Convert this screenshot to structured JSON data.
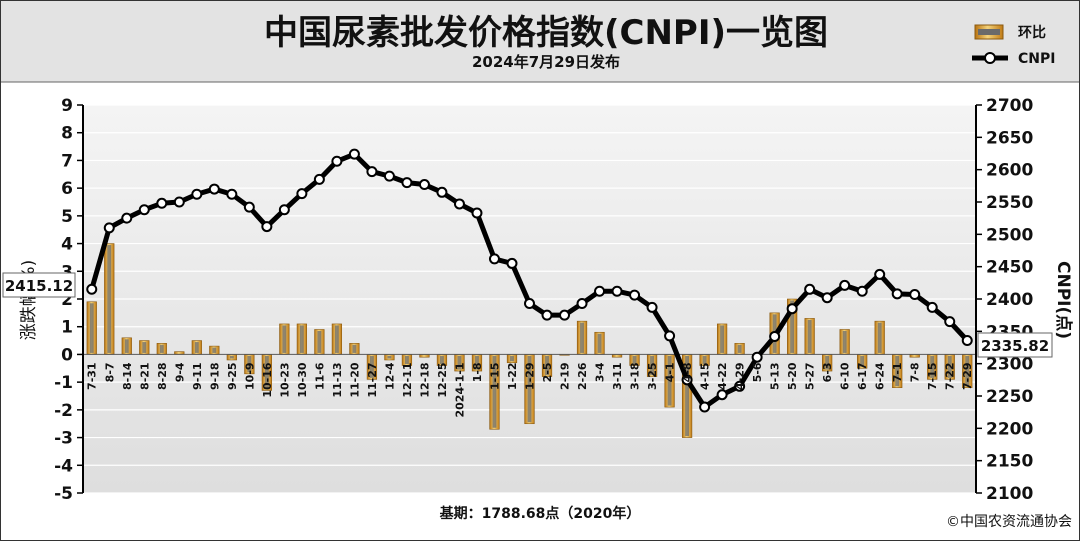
{
  "chart_data": {
    "type": "bar+line",
    "title": "中国尿素批发价格指数(CNPI)一览图",
    "subtitle": "2024年7月29日发布",
    "left_axis": {
      "label": "涨跌幅(%)",
      "ylim": [
        -5,
        9
      ],
      "ticks": [
        -5,
        -4,
        -3,
        -2,
        -1,
        0,
        1,
        2,
        3,
        4,
        5,
        6,
        7,
        8,
        9
      ]
    },
    "right_axis": {
      "label": "CNPI(点)",
      "ylim": [
        2100,
        2700
      ],
      "ticks": [
        2100,
        2150,
        2200,
        2250,
        2300,
        2350,
        2400,
        2450,
        2500,
        2550,
        2600,
        2650,
        2700
      ]
    },
    "legend": {
      "position": "top-right",
      "bar_label": "环比",
      "line_label": "CNPI"
    },
    "categories": [
      "7-31",
      "8-7",
      "8-14",
      "8-21",
      "8-28",
      "9-4",
      "9-11",
      "9-18",
      "9-25",
      "10-9",
      "10-16",
      "10-23",
      "10-30",
      "11-6",
      "11-13",
      "11-20",
      "11-27",
      "12-4",
      "12-11",
      "12-18",
      "12-25",
      "2024-1-1",
      "1-8",
      "1-15",
      "1-22",
      "1-29",
      "2-5",
      "2-19",
      "2-26",
      "3-4",
      "3-11",
      "3-18",
      "3-25",
      "4-1",
      "4-8",
      "4-15",
      "4-22",
      "4-29",
      "5-6",
      "5-13",
      "5-20",
      "5-27",
      "6-3",
      "6-10",
      "6-17",
      "6-24",
      "7-1",
      "7-8",
      "7-15",
      "7-22",
      "7-29"
    ],
    "series": [
      {
        "name": "环比",
        "type": "bar",
        "axis": "left",
        "values": [
          1.9,
          4.0,
          0.6,
          0.5,
          0.4,
          0.1,
          0.5,
          0.3,
          -0.2,
          -0.7,
          -1.3,
          1.1,
          1.1,
          0.9,
          1.1,
          0.4,
          -0.9,
          -0.2,
          -0.4,
          -0.1,
          -0.4,
          -0.6,
          -0.6,
          -2.7,
          -0.3,
          -2.5,
          -0.8,
          0.0,
          1.2,
          0.8,
          -0.1,
          -0.4,
          -0.8,
          -1.9,
          -3.0,
          -0.4,
          1.1,
          0.4,
          0.0,
          1.5,
          2.0,
          1.3,
          -0.6,
          0.9,
          -0.5,
          1.2,
          -1.2,
          -0.1,
          -0.9,
          -0.9,
          -1.2
        ]
      },
      {
        "name": "CNPI",
        "type": "line",
        "axis": "right",
        "values": [
          2415.12,
          2510,
          2525,
          2538,
          2548,
          2550,
          2562,
          2570,
          2562,
          2542,
          2512,
          2538,
          2563,
          2585,
          2613,
          2624,
          2597,
          2590,
          2580,
          2577,
          2565,
          2547,
          2533,
          2462,
          2455,
          2393,
          2375,
          2375,
          2393,
          2412,
          2412,
          2406,
          2387,
          2343,
          2275,
          2233,
          2252,
          2265,
          2310,
          2342,
          2385,
          2415,
          2402,
          2421,
          2412,
          2438,
          2408,
          2407,
          2387,
          2365,
          2335.82
        ]
      }
    ],
    "annotations": {
      "first_value": "2415.12",
      "last_value": "2335.82"
    }
  },
  "footer": {
    "base_period": "基期：1788.68点（2020年）",
    "copyright": "©中国农资流通协会"
  }
}
